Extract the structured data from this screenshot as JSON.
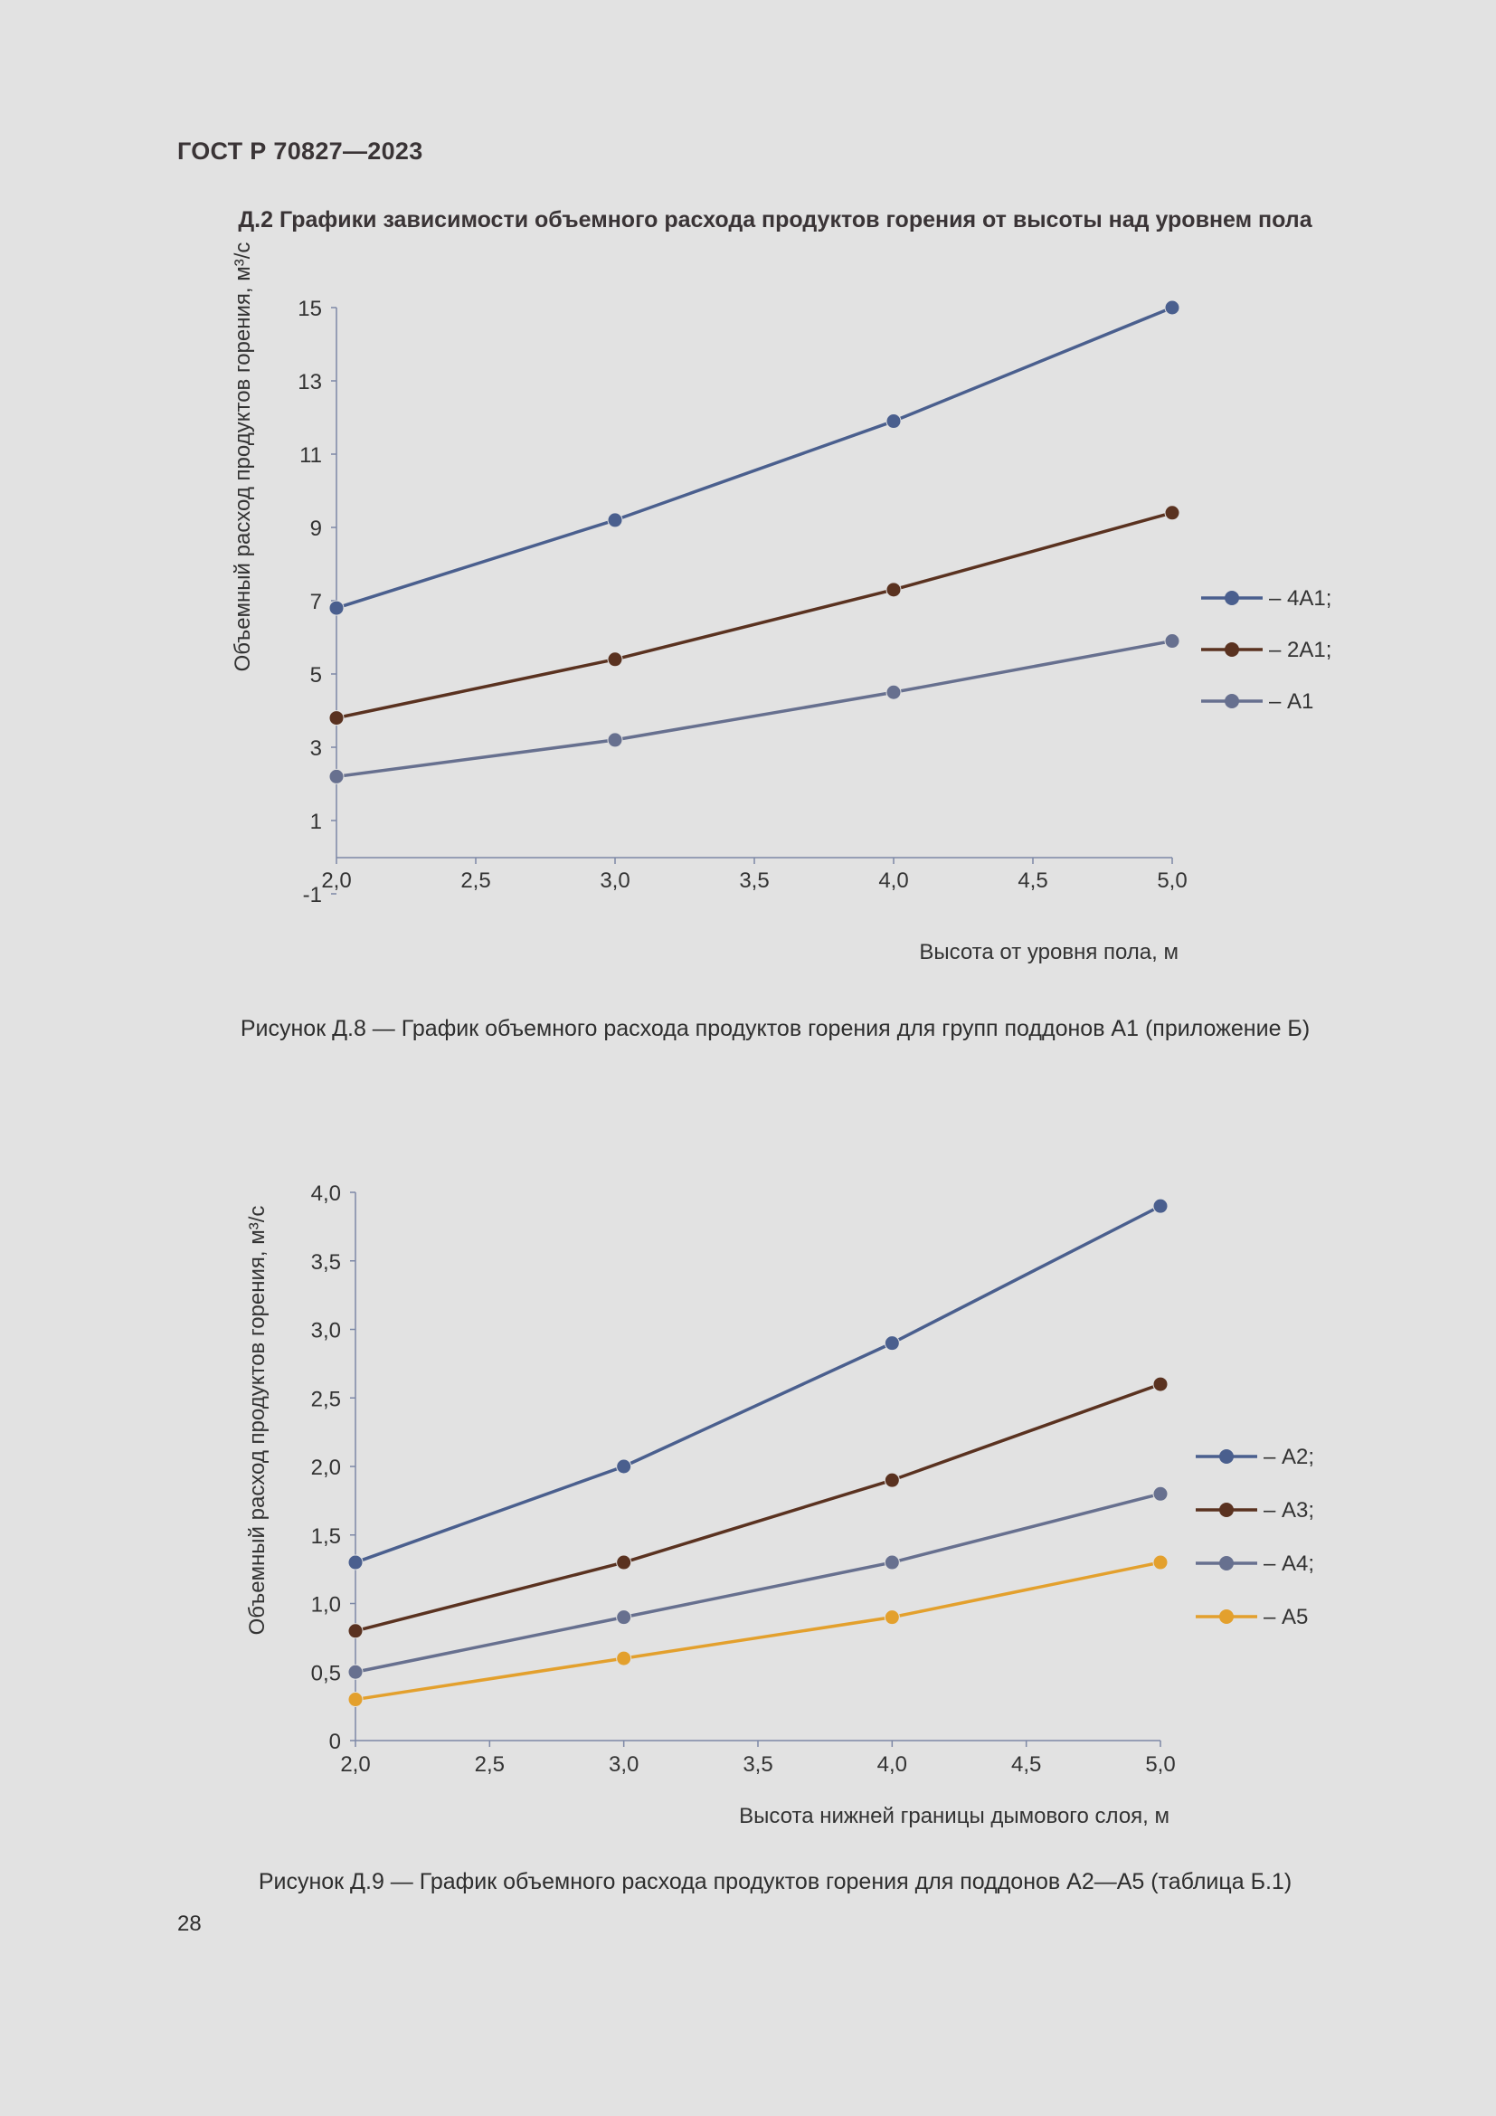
{
  "header": {
    "doc_id": "ГОСТ Р 70827—2023"
  },
  "section": {
    "title": "Д.2 Графики зависимости объемного расхода продуктов горения от высоты над уровнем пола"
  },
  "figures": [
    {
      "caption": "Рисунок Д.8 — График объемного расхода продуктов горения для групп поддонов А1 (приложение Б)"
    },
    {
      "caption": "Рисунок Д.9 — График объемного расхода продуктов горения для поддонов А2—А5 (таблица Б.1)"
    }
  ],
  "page": {
    "number": "28"
  },
  "chart_data": [
    {
      "type": "line",
      "title": "",
      "xlabel": "Высота от уровня пола, м",
      "ylabel": "Объемный расход продуктов горения, м³/с",
      "xlim": [
        2.0,
        5.0
      ],
      "ylim": [
        -1,
        15
      ],
      "xticks": [
        "2,0",
        "2,5",
        "3,0",
        "3,5",
        "4,0",
        "4,5",
        "5,0"
      ],
      "yticks": [
        "-1",
        "1",
        "3",
        "5",
        "7",
        "9",
        "11",
        "13",
        "15"
      ],
      "x": [
        2.0,
        3.0,
        4.0,
        5.0
      ],
      "grid": false,
      "legend_position": "right",
      "series": [
        {
          "name": "– 4А1;",
          "color": "#4a5f8e",
          "values": [
            6.8,
            9.2,
            11.9,
            15.0
          ]
        },
        {
          "name": "– 2А1;",
          "color": "#5a3220",
          "values": [
            3.8,
            5.4,
            7.3,
            9.4
          ]
        },
        {
          "name": "– А1",
          "color": "#67708f",
          "values": [
            2.2,
            3.2,
            4.5,
            5.9
          ]
        }
      ]
    },
    {
      "type": "line",
      "title": "",
      "xlabel": "Высота нижней границы дымового слоя, м",
      "ylabel": "Объемный расход продуктов горения, м³/с",
      "xlim": [
        2.0,
        5.0
      ],
      "ylim": [
        0,
        4.0
      ],
      "xticks": [
        "2,0",
        "2,5",
        "3,0",
        "3,5",
        "4,0",
        "4,5",
        "5,0"
      ],
      "yticks": [
        "0",
        "0,5",
        "1,0",
        "1,5",
        "2,0",
        "2,5",
        "3,0",
        "3,5",
        "4,0"
      ],
      "x": [
        2.0,
        3.0,
        4.0,
        5.0
      ],
      "grid": false,
      "legend_position": "right",
      "series": [
        {
          "name": "– А2;",
          "color": "#4a5f8e",
          "values": [
            1.3,
            2.0,
            2.9,
            3.9
          ]
        },
        {
          "name": "– А3;",
          "color": "#5a3220",
          "values": [
            0.8,
            1.3,
            1.9,
            2.6
          ]
        },
        {
          "name": "– А4;",
          "color": "#67708f",
          "values": [
            0.5,
            0.9,
            1.3,
            1.8
          ]
        },
        {
          "name": "– А5",
          "color": "#e3a02d",
          "values": [
            0.3,
            0.6,
            0.9,
            1.3
          ]
        }
      ]
    }
  ]
}
